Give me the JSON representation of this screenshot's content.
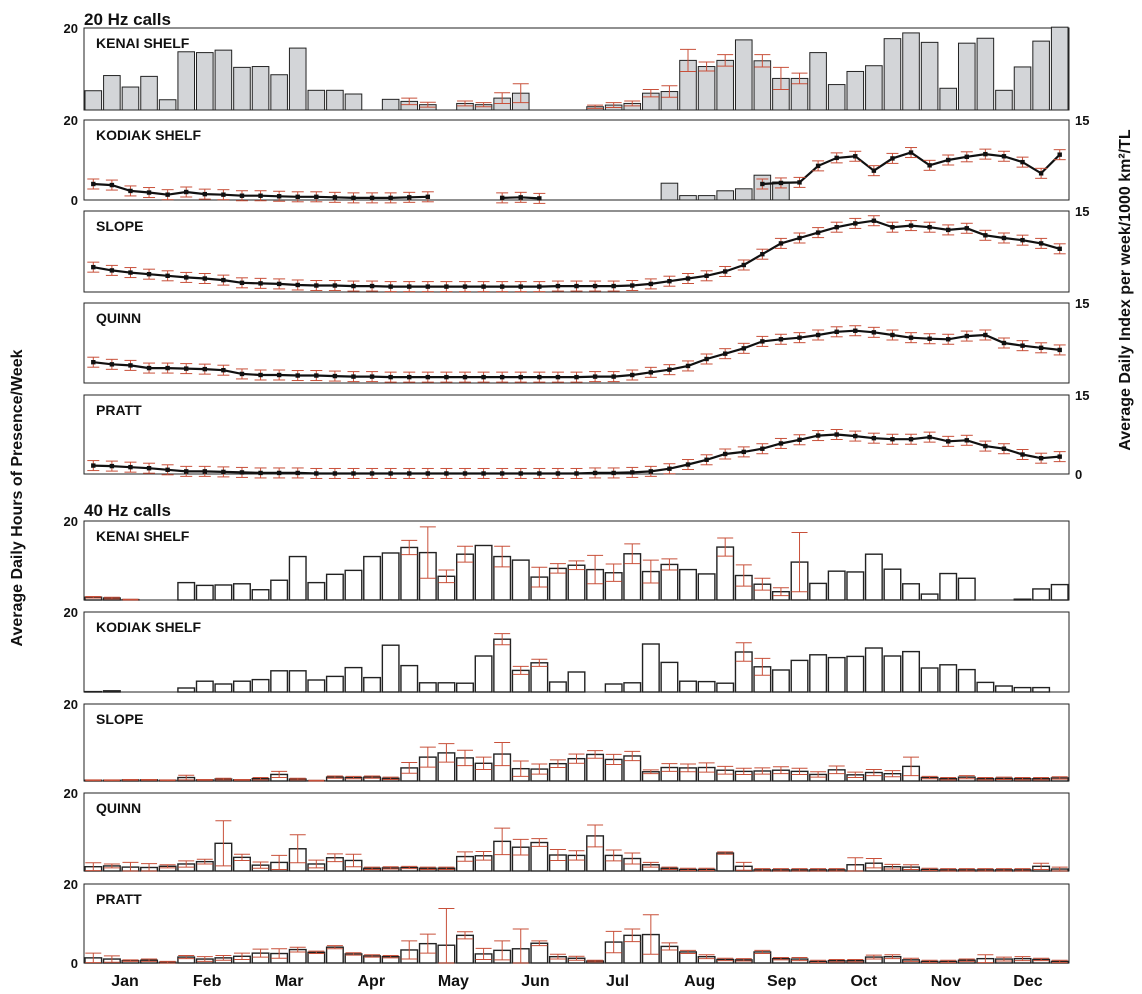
{
  "sections": {
    "hz20": "20 Hz calls",
    "hz40": "40 Hz calls"
  },
  "axes": {
    "left_label": "Average Daily Hours of Presence/Week",
    "right_label": "Average Daily Index per week/1000 km²/TL"
  },
  "months": [
    "Jan",
    "Feb",
    "Mar",
    "Apr",
    "May",
    "Jun",
    "Jul",
    "Aug",
    "Sep",
    "Oct",
    "Nov",
    "Dec"
  ],
  "chart_data": [
    {
      "type": "bar",
      "group": "20 Hz calls",
      "label": "KENAI SHELF",
      "ylim": [
        0,
        20
      ],
      "yticks": [
        20
      ],
      "values": [
        4.7,
        8.4,
        5.6,
        8.2,
        2.5,
        14.2,
        14.0,
        14.6,
        10.4,
        10.6,
        8.6,
        15.1,
        4.8,
        4.8,
        3.9,
        0,
        2.6,
        2.1,
        1.3,
        0,
        1.6,
        1.3,
        2.9,
        4.1,
        0,
        0,
        0,
        0.8,
        1.2,
        1.6,
        4.1,
        4.5,
        12.1,
        10.6,
        12.1,
        17.1,
        12.0,
        7.7,
        7.7,
        14.0,
        6.2,
        9.4,
        10.8,
        17.4,
        18.8,
        16.5,
        5.3,
        16.3,
        17.5,
        4.8,
        10.5,
        16.8,
        20.2
      ],
      "errors": [
        0,
        0,
        0,
        0,
        0,
        0,
        0,
        0,
        0,
        0,
        0,
        0,
        0,
        0,
        0,
        0,
        0,
        0.8,
        0.6,
        0,
        0.6,
        0.5,
        1.3,
        2.3,
        0,
        0,
        0,
        0.4,
        0.6,
        0.6,
        0.9,
        1.4,
        2.7,
        1.1,
        1.4,
        0,
        1.5,
        2.7,
        1.3,
        0,
        0,
        0,
        0,
        0,
        0,
        0,
        0,
        0,
        0,
        0,
        0,
        0,
        0
      ]
    },
    {
      "type": "bar+line",
      "group": "20 Hz calls",
      "label": "KODIAK SHELF",
      "ylim": [
        0,
        20
      ],
      "yticks": [
        0,
        20
      ],
      "y2lim": [
        0,
        15
      ],
      "y2ticks": [
        15
      ],
      "values": [
        0,
        0,
        0,
        0,
        0,
        0,
        0,
        0,
        0,
        0,
        0,
        0,
        0,
        0,
        0,
        0,
        0,
        0,
        0,
        0,
        0,
        0,
        0,
        0,
        0,
        0,
        0,
        0,
        0,
        0,
        0,
        4.2,
        1.1,
        1.1,
        2.3,
        2.8,
        6.2,
        4.5,
        0,
        0,
        0,
        0,
        0,
        0,
        0,
        0,
        0,
        0,
        0,
        0,
        0,
        0,
        0
      ],
      "line": [
        3.0,
        2.8,
        1.7,
        1.4,
        1.0,
        1.5,
        1.1,
        1.0,
        0.8,
        0.8,
        0.7,
        0.6,
        0.6,
        0.5,
        0.4,
        0.4,
        0.4,
        0.5,
        0.6,
        null,
        null,
        null,
        0.4,
        0.5,
        0.3,
        null,
        null,
        null,
        null,
        null,
        null,
        null,
        null,
        null,
        null,
        null,
        3.0,
        3.2,
        3.3,
        6.4,
        7.9,
        8.2,
        5.5,
        7.8,
        8.9,
        6.5,
        7.5,
        8.1,
        8.6,
        8.2,
        7.1,
        5.0,
        8.5
      ]
    },
    {
      "type": "line",
      "group": "20 Hz calls",
      "label": "SLOPE",
      "y2lim": [
        0,
        15
      ],
      "y2ticks": [
        15
      ],
      "line": [
        4.6,
        4.0,
        3.6,
        3.3,
        3.0,
        2.7,
        2.5,
        2.2,
        1.7,
        1.6,
        1.5,
        1.3,
        1.2,
        1.2,
        1.1,
        1.1,
        1.0,
        1.0,
        1.0,
        1.0,
        1.0,
        1.0,
        1.0,
        1.0,
        1.0,
        1.1,
        1.1,
        1.1,
        1.1,
        1.2,
        1.5,
        2.0,
        2.5,
        3.0,
        3.8,
        5.0,
        7.0,
        9.0,
        10.0,
        11.0,
        12.0,
        12.7,
        13.2,
        12.0,
        12.3,
        12.0,
        11.5,
        11.8,
        10.5,
        10.0,
        9.6,
        9.0,
        8.0
      ]
    },
    {
      "type": "line",
      "group": "20 Hz calls",
      "label": "QUINN",
      "y2lim": [
        0,
        15
      ],
      "y2ticks": [
        15
      ],
      "line": [
        3.9,
        3.5,
        3.3,
        2.8,
        2.8,
        2.7,
        2.6,
        2.4,
        1.7,
        1.5,
        1.5,
        1.4,
        1.4,
        1.3,
        1.2,
        1.2,
        1.1,
        1.1,
        1.1,
        1.1,
        1.1,
        1.1,
        1.1,
        1.1,
        1.1,
        1.1,
        1.1,
        1.2,
        1.2,
        1.5,
        2.0,
        2.5,
        3.2,
        4.5,
        5.5,
        6.5,
        7.8,
        8.2,
        8.5,
        9.0,
        9.6,
        9.8,
        9.5,
        9.0,
        8.5,
        8.3,
        8.2,
        8.8,
        9.0,
        7.5,
        7.0,
        6.6,
        6.2
      ]
    },
    {
      "type": "line",
      "group": "20 Hz calls",
      "label": "PRATT",
      "y2lim": [
        0,
        15
      ],
      "y2ticks": [
        0,
        15
      ],
      "line": [
        1.6,
        1.5,
        1.3,
        1.1,
        0.8,
        0.5,
        0.5,
        0.4,
        0.3,
        0.2,
        0.2,
        0.2,
        0.1,
        0.1,
        0.1,
        0.1,
        0.1,
        0.1,
        0.1,
        0.1,
        0.1,
        0.1,
        0.1,
        0.1,
        0.1,
        0.1,
        0.1,
        0.2,
        0.2,
        0.3,
        0.5,
        1.0,
        1.8,
        2.7,
        3.8,
        4.2,
        4.8,
        5.8,
        6.5,
        7.3,
        7.5,
        7.2,
        6.8,
        6.6,
        6.6,
        7.0,
        6.2,
        6.4,
        5.3,
        4.8,
        3.7,
        3.0,
        3.3
      ]
    },
    {
      "type": "bar",
      "group": "40 Hz calls",
      "label": "KENAI SHELF",
      "ylim": [
        0,
        20
      ],
      "yticks": [
        20
      ],
      "values": [
        0.7,
        0.5,
        0.1,
        0,
        0,
        4.4,
        3.7,
        3.8,
        4.1,
        2.6,
        5.0,
        11.0,
        4.4,
        6.5,
        7.5,
        11.0,
        11.9,
        13.3,
        12.0,
        6.0,
        11.6,
        13.8,
        11.0,
        10.1,
        5.8,
        8.0,
        8.8,
        7.7,
        6.9,
        11.7,
        7.2,
        9.0,
        7.7,
        6.6,
        13.4,
        6.2,
        4.0,
        2.1,
        9.6,
        4.2,
        7.3,
        7.1,
        11.6,
        7.8,
        4.1,
        1.5,
        6.7,
        5.5,
        0,
        0,
        0.2,
        2.8,
        3.9
      ],
      "errors": [
        0.2,
        0.2,
        0.1,
        0,
        0,
        0,
        0,
        0,
        0,
        0,
        0,
        0,
        0,
        0,
        0,
        0,
        0,
        1.8,
        6.5,
        1.6,
        2.0,
        0,
        2.6,
        0,
        2.5,
        1.2,
        1.1,
        3.6,
        2.2,
        2.5,
        2.9,
        1.4,
        0,
        0,
        2.3,
        2.7,
        1.5,
        1.0,
        7.5,
        0,
        0,
        0,
        0,
        0,
        0,
        0,
        0,
        0,
        0,
        0,
        0,
        0,
        0
      ]
    },
    {
      "type": "bar",
      "group": "40 Hz calls",
      "label": "KODIAK SHELF",
      "ylim": [
        0,
        20
      ],
      "yticks": [
        20
      ],
      "values": [
        0.1,
        0.3,
        0,
        0,
        0,
        1.0,
        2.7,
        2.0,
        2.7,
        3.1,
        5.3,
        5.3,
        3.0,
        3.9,
        6.1,
        3.6,
        11.7,
        6.6,
        2.3,
        2.3,
        2.2,
        9.0,
        13.2,
        5.4,
        7.3,
        2.5,
        5.0,
        0,
        2.0,
        2.3,
        12.0,
        7.4,
        2.7,
        2.6,
        2.2,
        10.0,
        6.3,
        5.5,
        7.9,
        9.3,
        8.6,
        8.9,
        11.0,
        9.0,
        10.1,
        6.0,
        6.8,
        5.6,
        2.4,
        1.5,
        1.1,
        1.1,
        0
      ],
      "errors": [
        0,
        0,
        0,
        0,
        0,
        0,
        0,
        0,
        0,
        0,
        0,
        0,
        0,
        0,
        0,
        0,
        0,
        0,
        0,
        0,
        0,
        0,
        1.4,
        1.0,
        0.9,
        0,
        0,
        0,
        0,
        0,
        0,
        0,
        0,
        0,
        0,
        2.3,
        2.1,
        0,
        0,
        0,
        0,
        0,
        0,
        0,
        0,
        0,
        0,
        0,
        0,
        0,
        0,
        0,
        0
      ]
    },
    {
      "type": "bar",
      "group": "40 Hz calls",
      "label": "SLOPE",
      "ylim": [
        0,
        20
      ],
      "yticks": [
        20
      ],
      "values": [
        0.2,
        0.2,
        0.3,
        0.3,
        0.2,
        0.9,
        0.3,
        0.5,
        0.3,
        0.6,
        1.7,
        0.5,
        0.1,
        1.0,
        0.9,
        1.0,
        0.7,
        3.4,
        6.2,
        7.3,
        6.0,
        4.6,
        7.0,
        3.2,
        3.1,
        4.5,
        5.8,
        6.9,
        5.6,
        6.5,
        2.4,
        3.5,
        3.4,
        3.5,
        2.8,
        2.5,
        2.6,
        2.8,
        2.5,
        1.7,
        2.9,
        1.6,
        2.2,
        1.9,
        3.8,
        0.9,
        0.6,
        1.0,
        0.6,
        0.7,
        0.6,
        0.6,
        0.8
      ],
      "errors": [
        0.1,
        0.1,
        0.1,
        0.1,
        0.1,
        0.6,
        0.1,
        0.2,
        0.1,
        0.3,
        0.8,
        0.2,
        0.1,
        0.3,
        0.3,
        0.3,
        0.3,
        1.4,
        2.6,
        2.4,
        2.0,
        1.6,
        3.0,
        2.0,
        1.3,
        1.0,
        1.2,
        1.0,
        1.3,
        1.2,
        0.5,
        1.0,
        1.0,
        1.2,
        1.0,
        0.8,
        0.8,
        0.9,
        0.8,
        0.7,
        1.0,
        0.7,
        0.8,
        0.8,
        2.4,
        0.3,
        0.3,
        0.4,
        0.3,
        0.3,
        0.3,
        0.3,
        0.3
      ]
    },
    {
      "type": "bar",
      "group": "40 Hz calls",
      "label": "QUINN",
      "ylim": [
        0,
        20
      ],
      "yticks": [
        20
      ],
      "values": [
        1.1,
        1.3,
        1.0,
        0.9,
        1.2,
        1.8,
        2.4,
        7.1,
        3.5,
        1.5,
        2.2,
        5.7,
        1.8,
        3.4,
        2.7,
        0.7,
        0.8,
        0.9,
        0.7,
        0.7,
        3.7,
        3.9,
        7.6,
        6.1,
        7.3,
        4.1,
        4.0,
        9.0,
        4.0,
        3.2,
        1.6,
        0.7,
        0.4,
        0.4,
        4.6,
        1.2,
        0.3,
        0.3,
        0.3,
        0.3,
        0.3,
        1.6,
        2.0,
        1.1,
        1.0,
        0.4,
        0.3,
        0.3,
        0.3,
        0.3,
        0.3,
        1.2,
        0.5
      ],
      "errors": [
        1.0,
        0.5,
        1.2,
        1.0,
        0.4,
        0.8,
        0.6,
        5.8,
        0.8,
        0.8,
        1.8,
        3.6,
        1.0,
        1.0,
        1.6,
        0.3,
        0.3,
        0.3,
        0.3,
        0.3,
        1.2,
        1.1,
        3.4,
        2.0,
        1.0,
        1.4,
        1.2,
        2.8,
        1.4,
        1.4,
        0.6,
        0.3,
        0.3,
        0.3,
        0.3,
        1.0,
        0.3,
        0.3,
        0.3,
        0.3,
        0.3,
        1.8,
        1.2,
        0.6,
        0.6,
        0.3,
        0.3,
        0.3,
        0.3,
        0.3,
        0.3,
        0.8,
        0.5
      ]
    },
    {
      "type": "bar",
      "group": "40 Hz calls",
      "label": "PRATT",
      "ylim": [
        0,
        20
      ],
      "yticks": [
        0,
        20
      ],
      "values": [
        1.3,
        1.0,
        0.6,
        0.7,
        0.2,
        1.5,
        1.0,
        1.3,
        1.7,
        2.5,
        2.4,
        3.4,
        2.7,
        4.0,
        2.3,
        1.8,
        1.6,
        3.3,
        4.9,
        4.5,
        7.0,
        2.3,
        3.2,
        3.6,
        5.0,
        1.6,
        1.2,
        0.5,
        5.3,
        7.0,
        7.2,
        4.2,
        2.8,
        1.6,
        0.9,
        0.8,
        2.8,
        1.1,
        1.0,
        0.4,
        0.6,
        0.6,
        1.5,
        1.6,
        0.8,
        0.4,
        0.4,
        0.7,
        1.1,
        1.0,
        1.1,
        0.9,
        0.4
      ],
      "errors": [
        1.2,
        0.8,
        0.2,
        0.3,
        0.2,
        0.4,
        0.6,
        0.6,
        0.8,
        1.0,
        1.2,
        0.6,
        0.3,
        0.4,
        0.3,
        0.3,
        0.3,
        2.3,
        2.4,
        9.3,
        0.9,
        1.4,
        2.4,
        5.0,
        0.6,
        0.6,
        0.5,
        0.2,
        2.7,
        1.6,
        5.0,
        0.9,
        0.4,
        0.5,
        0.3,
        0.3,
        0.4,
        0.3,
        0.4,
        0.3,
        0.3,
        0.3,
        0.5,
        0.5,
        0.4,
        0.3,
        0.3,
        0.3,
        1.0,
        0.5,
        0.5,
        0.3,
        0.3
      ]
    }
  ]
}
